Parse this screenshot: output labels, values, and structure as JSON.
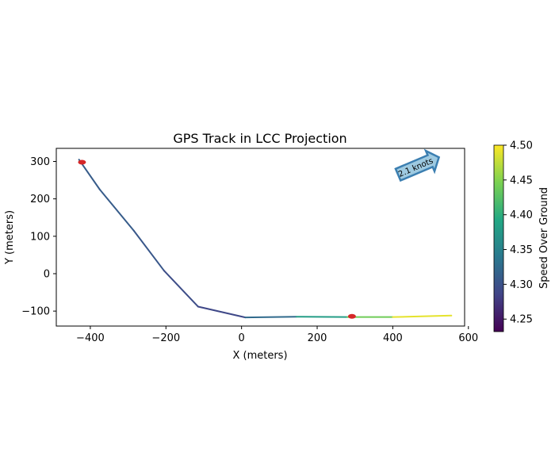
{
  "chart_data": {
    "type": "line",
    "title": "GPS Track in LCC Projection",
    "xlabel": "X (meters)",
    "ylabel": "Y (meters)",
    "xlim": [
      -490,
      590
    ],
    "ylim": [
      -140,
      335
    ],
    "xticks": [
      -400,
      -200,
      0,
      200,
      400,
      600
    ],
    "yticks": [
      -100,
      0,
      100,
      200,
      300
    ],
    "grid": false,
    "track": [
      {
        "x": -430,
        "y": 305,
        "speed": 4.31
      },
      {
        "x": -375,
        "y": 225,
        "speed": 4.31
      },
      {
        "x": -285,
        "y": 115,
        "speed": 4.31
      },
      {
        "x": -205,
        "y": 8,
        "speed": 4.3
      },
      {
        "x": -115,
        "y": -88,
        "speed": 4.29
      },
      {
        "x": 10,
        "y": -117,
        "speed": 4.29
      },
      {
        "x": 145,
        "y": -115,
        "speed": 4.36
      },
      {
        "x": 280,
        "y": -116,
        "speed": 4.4
      },
      {
        "x": 400,
        "y": -116,
        "speed": 4.48
      },
      {
        "x": 555,
        "y": -112,
        "speed": 4.5
      }
    ],
    "markers": [
      {
        "x": -422,
        "y": 298,
        "color": "#d62728"
      },
      {
        "x": 292,
        "y": -114,
        "color": "#d62728"
      }
    ],
    "annotation": {
      "text": "2.1 knots",
      "x": 485,
      "y": 275,
      "rotation_deg": 23
    },
    "colorbar": {
      "label": "Speed Over Ground",
      "range": [
        4.232,
        4.5
      ],
      "ticks": [
        4.25,
        4.3,
        4.35,
        4.4,
        4.45,
        4.5
      ],
      "tick_labels": [
        "4.25",
        "4.30",
        "4.35",
        "4.40",
        "4.45",
        "4.50"
      ],
      "colormap": "viridis",
      "colormap_stops": [
        "#440154",
        "#414487",
        "#2a788e",
        "#22a884",
        "#7ad151",
        "#fde725"
      ]
    }
  }
}
